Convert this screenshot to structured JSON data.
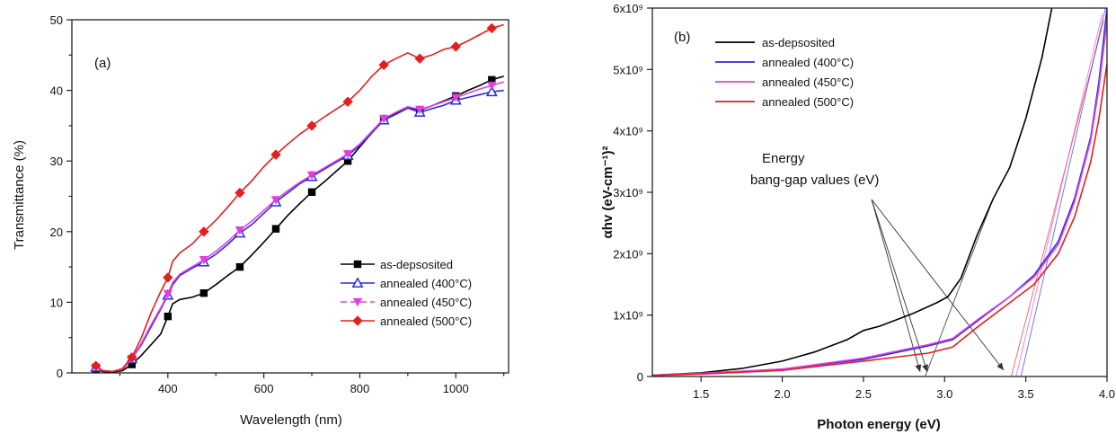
{
  "chart_data": [
    {
      "type": "line",
      "panel_label": "(a)",
      "xlabel": "Wavelength (nm)",
      "ylabel": "Transmittance (%)",
      "xlim": [
        200,
        1110
      ],
      "ylim": [
        0,
        50
      ],
      "xticks": [
        400,
        600,
        800,
        1000
      ],
      "yticks": [
        0,
        10,
        20,
        30,
        40,
        50
      ],
      "legend_position": "bottom-right",
      "series": [
        {
          "name": "as-depsosited",
          "color": "#000000",
          "marker": "square",
          "points": [
            [
              250,
              0.5
            ],
            [
              265,
              0.2
            ],
            [
              285,
              0.1
            ],
            [
              305,
              0.3
            ],
            [
              325,
              1.2
            ],
            [
              345,
              2.5
            ],
            [
              365,
              4
            ],
            [
              385,
              5.5
            ],
            [
              400,
              8
            ],
            [
              410,
              9.8
            ],
            [
              425,
              10.4
            ],
            [
              450,
              10.7
            ],
            [
              475,
              11.3
            ],
            [
              500,
              12.5
            ],
            [
              525,
              13.8
            ],
            [
              550,
              15
            ],
            [
              575,
              16.7
            ],
            [
              600,
              18.5
            ],
            [
              625,
              20.4
            ],
            [
              650,
              22.3
            ],
            [
              675,
              24
            ],
            [
              700,
              25.6
            ],
            [
              725,
              27
            ],
            [
              750,
              28.5
            ],
            [
              775,
              30
            ],
            [
              800,
              32
            ],
            [
              825,
              34
            ],
            [
              850,
              35.8
            ],
            [
              875,
              36.8
            ],
            [
              900,
              37.6
            ],
            [
              925,
              37.2
            ],
            [
              950,
              37.8
            ],
            [
              975,
              38.5
            ],
            [
              1000,
              39.2
            ],
            [
              1025,
              40
            ],
            [
              1050,
              40.7
            ],
            [
              1075,
              41.5
            ],
            [
              1100,
              42
            ]
          ],
          "markers_x": [
            250,
            325,
            400,
            475,
            550,
            625,
            700,
            775,
            850,
            925,
            1000,
            1075
          ]
        },
        {
          "name": "annealed (400°C)",
          "color": "#2a2ae6",
          "marker": "open-triangle-up",
          "points": [
            [
              250,
              0.8
            ],
            [
              265,
              0.3
            ],
            [
              285,
              0.2
            ],
            [
              305,
              0.5
            ],
            [
              325,
              2
            ],
            [
              345,
              4
            ],
            [
              365,
              6.5
            ],
            [
              385,
              9
            ],
            [
              400,
              11
            ],
            [
              410,
              12.5
            ],
            [
              425,
              13.8
            ],
            [
              450,
              14.8
            ],
            [
              475,
              15.7
            ],
            [
              500,
              16.8
            ],
            [
              525,
              18.2
            ],
            [
              550,
              19.8
            ],
            [
              575,
              21
            ],
            [
              600,
              22.6
            ],
            [
              625,
              24.2
            ],
            [
              650,
              25.5
            ],
            [
              675,
              26.8
            ],
            [
              700,
              27.8
            ],
            [
              725,
              28.8
            ],
            [
              750,
              29.8
            ],
            [
              775,
              30.8
            ],
            [
              800,
              32.2
            ],
            [
              825,
              34
            ],
            [
              850,
              35.8
            ],
            [
              875,
              36.6
            ],
            [
              900,
              37.5
            ],
            [
              925,
              36.9
            ],
            [
              950,
              37.4
            ],
            [
              975,
              37.9
            ],
            [
              1000,
              38.6
            ],
            [
              1025,
              39
            ],
            [
              1050,
              39.4
            ],
            [
              1075,
              39.8
            ],
            [
              1100,
              40
            ]
          ],
          "markers_x": [
            250,
            325,
            400,
            475,
            550,
            625,
            700,
            775,
            850,
            925,
            1000,
            1075
          ]
        },
        {
          "name": "annealed (450°C)",
          "color": "#e040e0",
          "marker": "triangle-down",
          "points": [
            [
              250,
              0.8
            ],
            [
              265,
              0.3
            ],
            [
              285,
              0.2
            ],
            [
              305,
              0.5
            ],
            [
              325,
              2
            ],
            [
              345,
              4.2
            ],
            [
              365,
              6.8
            ],
            [
              385,
              9.2
            ],
            [
              400,
              11.2
            ],
            [
              410,
              12.8
            ],
            [
              425,
              14
            ],
            [
              450,
              15
            ],
            [
              475,
              16
            ],
            [
              500,
              17.2
            ],
            [
              525,
              18.6
            ],
            [
              550,
              20.2
            ],
            [
              575,
              21.5
            ],
            [
              600,
              23
            ],
            [
              625,
              24.5
            ],
            [
              650,
              25.8
            ],
            [
              675,
              27
            ],
            [
              700,
              28
            ],
            [
              725,
              29
            ],
            [
              750,
              30
            ],
            [
              775,
              31
            ],
            [
              800,
              32.4
            ],
            [
              825,
              34.2
            ],
            [
              850,
              36
            ],
            [
              875,
              36.9
            ],
            [
              900,
              37.7
            ],
            [
              925,
              37.3
            ],
            [
              950,
              37.8
            ],
            [
              975,
              38.4
            ],
            [
              1000,
              39
            ],
            [
              1025,
              39.6
            ],
            [
              1050,
              40.2
            ],
            [
              1075,
              40.7
            ],
            [
              1100,
              41.2
            ]
          ],
          "markers_x": [
            250,
            325,
            400,
            475,
            550,
            625,
            700,
            775,
            850,
            925,
            1000,
            1075
          ]
        },
        {
          "name": "annealed (500°C)",
          "color": "#e61e1e",
          "marker": "diamond",
          "points": [
            [
              250,
              1
            ],
            [
              265,
              0.3
            ],
            [
              285,
              0.2
            ],
            [
              305,
              0.6
            ],
            [
              325,
              2.2
            ],
            [
              345,
              5
            ],
            [
              365,
              8.5
            ],
            [
              385,
              11.5
            ],
            [
              400,
              13.5
            ],
            [
              410,
              15.8
            ],
            [
              425,
              17
            ],
            [
              450,
              18.2
            ],
            [
              475,
              20
            ],
            [
              500,
              21.6
            ],
            [
              525,
              23.5
            ],
            [
              550,
              25.5
            ],
            [
              575,
              27.2
            ],
            [
              600,
              29.2
            ],
            [
              625,
              30.9
            ],
            [
              650,
              32.4
            ],
            [
              675,
              33.8
            ],
            [
              700,
              35
            ],
            [
              725,
              36.2
            ],
            [
              750,
              37.3
            ],
            [
              775,
              38.4
            ],
            [
              800,
              40
            ],
            [
              825,
              42
            ],
            [
              850,
              43.6
            ],
            [
              875,
              44.5
            ],
            [
              900,
              45.3
            ],
            [
              925,
              44.5
            ],
            [
              950,
              45
            ],
            [
              975,
              45.8
            ],
            [
              1000,
              46.2
            ],
            [
              1025,
              47
            ],
            [
              1050,
              47.9
            ],
            [
              1075,
              48.8
            ],
            [
              1100,
              49.3
            ]
          ],
          "markers_x": [
            250,
            325,
            400,
            475,
            550,
            625,
            700,
            775,
            850,
            925,
            1000,
            1075
          ]
        }
      ]
    },
    {
      "type": "line",
      "panel_label": "(b)",
      "xlabel": "Photon energy (eV)",
      "ylabel": "αhv (eV-cm⁻¹)²",
      "xlim": [
        1.2,
        4.0
      ],
      "ylim": [
        0,
        6
      ],
      "y_unit_multiplier": "x10⁹",
      "xticks": [
        1.5,
        2.0,
        2.5,
        3.0,
        3.5,
        4.0
      ],
      "xtick_labels": [
        "1.5",
        "2.0",
        "2.5",
        "3.0",
        "3.5",
        "4.0"
      ],
      "yticks": [
        0,
        1,
        2,
        3,
        4,
        5,
        6
      ],
      "ytick_labels": [
        "0",
        "1x10⁹",
        "2x10⁹",
        "3x10⁹",
        "4x10⁹",
        "5x10⁹",
        "6x10⁹"
      ],
      "legend_position": "top-left",
      "series": [
        {
          "name": "as-depsosited",
          "color": "#000000",
          "points": [
            [
              1.2,
              0.02
            ],
            [
              1.5,
              0.06
            ],
            [
              1.75,
              0.13
            ],
            [
              2.0,
              0.25
            ],
            [
              2.2,
              0.4
            ],
            [
              2.4,
              0.6
            ],
            [
              2.5,
              0.75
            ],
            [
              2.6,
              0.82
            ],
            [
              2.8,
              1.02
            ],
            [
              2.95,
              1.2
            ],
            [
              3.02,
              1.3
            ],
            [
              3.1,
              1.6
            ],
            [
              3.2,
              2.3
            ],
            [
              3.3,
              2.9
            ],
            [
              3.4,
              3.4
            ],
            [
              3.5,
              4.2
            ],
            [
              3.6,
              5.2
            ],
            [
              3.66,
              6
            ]
          ]
        },
        {
          "name": "annealed (400°C)",
          "color": "#2a2ae6",
          "points": [
            [
              1.2,
              0.02
            ],
            [
              1.5,
              0.05
            ],
            [
              2.0,
              0.12
            ],
            [
              2.5,
              0.28
            ],
            [
              2.9,
              0.5
            ],
            [
              3.05,
              0.6
            ],
            [
              3.2,
              0.9
            ],
            [
              3.4,
              1.3
            ],
            [
              3.55,
              1.65
            ],
            [
              3.7,
              2.2
            ],
            [
              3.8,
              2.9
            ],
            [
              3.9,
              3.9
            ],
            [
              3.95,
              4.8
            ],
            [
              4.0,
              6
            ]
          ]
        },
        {
          "name": "annealed (450°C)",
          "color": "#e040e0",
          "points": [
            [
              1.2,
              0.02
            ],
            [
              1.5,
              0.05
            ],
            [
              2.0,
              0.12
            ],
            [
              2.5,
              0.3
            ],
            [
              2.9,
              0.52
            ],
            [
              3.05,
              0.62
            ],
            [
              3.2,
              0.92
            ],
            [
              3.4,
              1.3
            ],
            [
              3.55,
              1.62
            ],
            [
              3.7,
              2.15
            ],
            [
              3.8,
              2.85
            ],
            [
              3.9,
              3.85
            ],
            [
              3.95,
              4.7
            ],
            [
              4.0,
              5.8
            ]
          ]
        },
        {
          "name": "annealed (500°C)",
          "color": "#e61e1e",
          "points": [
            [
              1.2,
              0.015
            ],
            [
              1.5,
              0.04
            ],
            [
              2.0,
              0.1
            ],
            [
              2.5,
              0.25
            ],
            [
              2.9,
              0.38
            ],
            [
              3.05,
              0.48
            ],
            [
              3.2,
              0.8
            ],
            [
              3.4,
              1.2
            ],
            [
              3.55,
              1.5
            ],
            [
              3.7,
              2.0
            ],
            [
              3.8,
              2.6
            ],
            [
              3.9,
              3.5
            ],
            [
              3.95,
              4.2
            ],
            [
              4.0,
              5.1
            ]
          ]
        }
      ],
      "annotation": {
        "lines": [
          "Energy",
          "bang-gap values (eV)"
        ]
      }
    }
  ]
}
